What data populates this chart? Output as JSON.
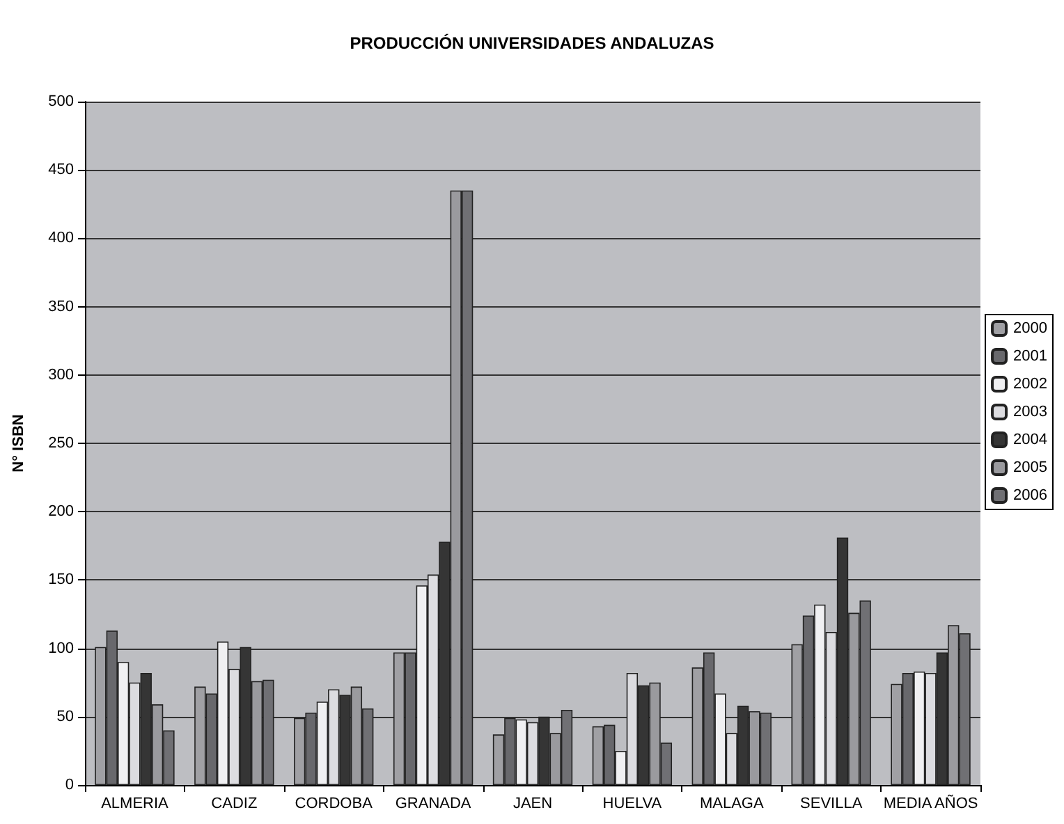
{
  "chart_data": {
    "type": "bar",
    "title": "PRODUCCIÓN UNIVERSIDADES ANDALUZAS",
    "ylabel": "N° ISBN",
    "categories": [
      "ALMERIA",
      "CADIZ",
      "CORDOBA",
      "GRANADA",
      "JAEN",
      "HUELVA",
      "MALAGA",
      "SEVILLA",
      "MEDIA AÑOS"
    ],
    "series": [
      {
        "name": "2000",
        "color": "#a0a0a4",
        "values": [
          101,
          72,
          49,
          97,
          37,
          43,
          86,
          103,
          74
        ]
      },
      {
        "name": "2001",
        "color": "#68686c",
        "values": [
          113,
          67,
          53,
          97,
          49,
          44,
          97,
          124,
          82
        ]
      },
      {
        "name": "2002",
        "color": "#f0f0f2",
        "values": [
          90,
          105,
          61,
          146,
          48,
          25,
          67,
          132,
          83
        ]
      },
      {
        "name": "2003",
        "color": "#dcdce0",
        "values": [
          75,
          85,
          70,
          154,
          46,
          82,
          38,
          112,
          82
        ]
      },
      {
        "name": "2004",
        "color": "#353535",
        "values": [
          82,
          101,
          66,
          178,
          50,
          73,
          58,
          181,
          97
        ]
      },
      {
        "name": "2005",
        "color": "#9a9a9e",
        "values": [
          59,
          76,
          72,
          435,
          38,
          75,
          54,
          126,
          117
        ]
      },
      {
        "name": "2006",
        "color": "#707074",
        "values": [
          40,
          77,
          56,
          435,
          55,
          31,
          53,
          135,
          111
        ]
      }
    ],
    "ylim": [
      0,
      500
    ],
    "yticks": [
      0,
      50,
      100,
      150,
      200,
      250,
      300,
      350,
      400,
      450,
      500
    ],
    "grid": "y",
    "legend": "right"
  }
}
